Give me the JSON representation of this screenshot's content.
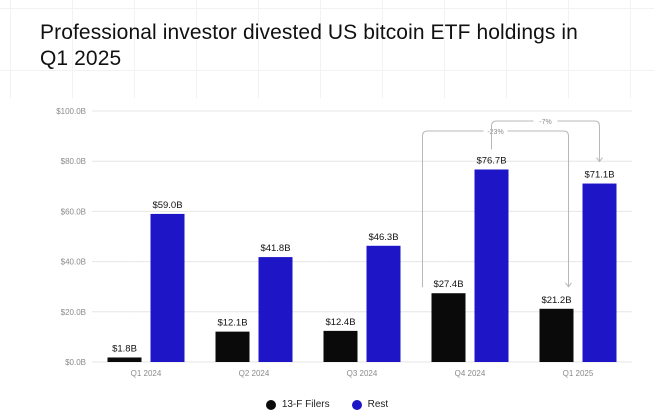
{
  "title": "Professional investor divested US bitcoin ETF holdings in Q1 2025",
  "colors": {
    "filers": "#0a0a0a",
    "rest": "#1e16c6",
    "grid": "#e6e6e6",
    "axis_text": "#8a8a8a",
    "arrow": "#b8b8b8"
  },
  "chart_data": {
    "type": "bar",
    "title": "Professional investor divested US bitcoin ETF holdings in Q1 2025",
    "categories": [
      "Q1 2024",
      "Q2 2024",
      "Q3 2024",
      "Q4 2024",
      "Q1 2025"
    ],
    "series": [
      {
        "name": "13-F Filers",
        "values": [
          1.8,
          12.1,
          12.4,
          27.4,
          21.2
        ],
        "labels": [
          "$1.8B",
          "$12.1B",
          "$12.4B",
          "$27.4B",
          "$21.2B"
        ]
      },
      {
        "name": "Rest",
        "values": [
          59.0,
          41.8,
          46.3,
          76.7,
          71.1
        ],
        "labels": [
          "$59.0B",
          "$41.8B",
          "$46.3B",
          "$76.7B",
          "$71.1B"
        ]
      }
    ],
    "ylim": [
      0,
      100
    ],
    "yticks": [
      0,
      20,
      40,
      60,
      80,
      100
    ],
    "ytick_labels": [
      "$0.0B",
      "$20.0B",
      "$40.0B",
      "$60.0B",
      "$80.0B",
      "$100.0B"
    ],
    "xlabel": "",
    "ylabel": "",
    "legend_position": "bottom-center",
    "annotations": [
      {
        "text": "-23%",
        "from": "13-F Filers Q4 2024",
        "to": "13-F Filers Q1 2025"
      },
      {
        "text": "-7%",
        "from": "Rest Q4 2024",
        "to": "Rest Q1 2025"
      }
    ]
  },
  "legend": {
    "filers": "13-F Filers",
    "rest": "Rest"
  }
}
